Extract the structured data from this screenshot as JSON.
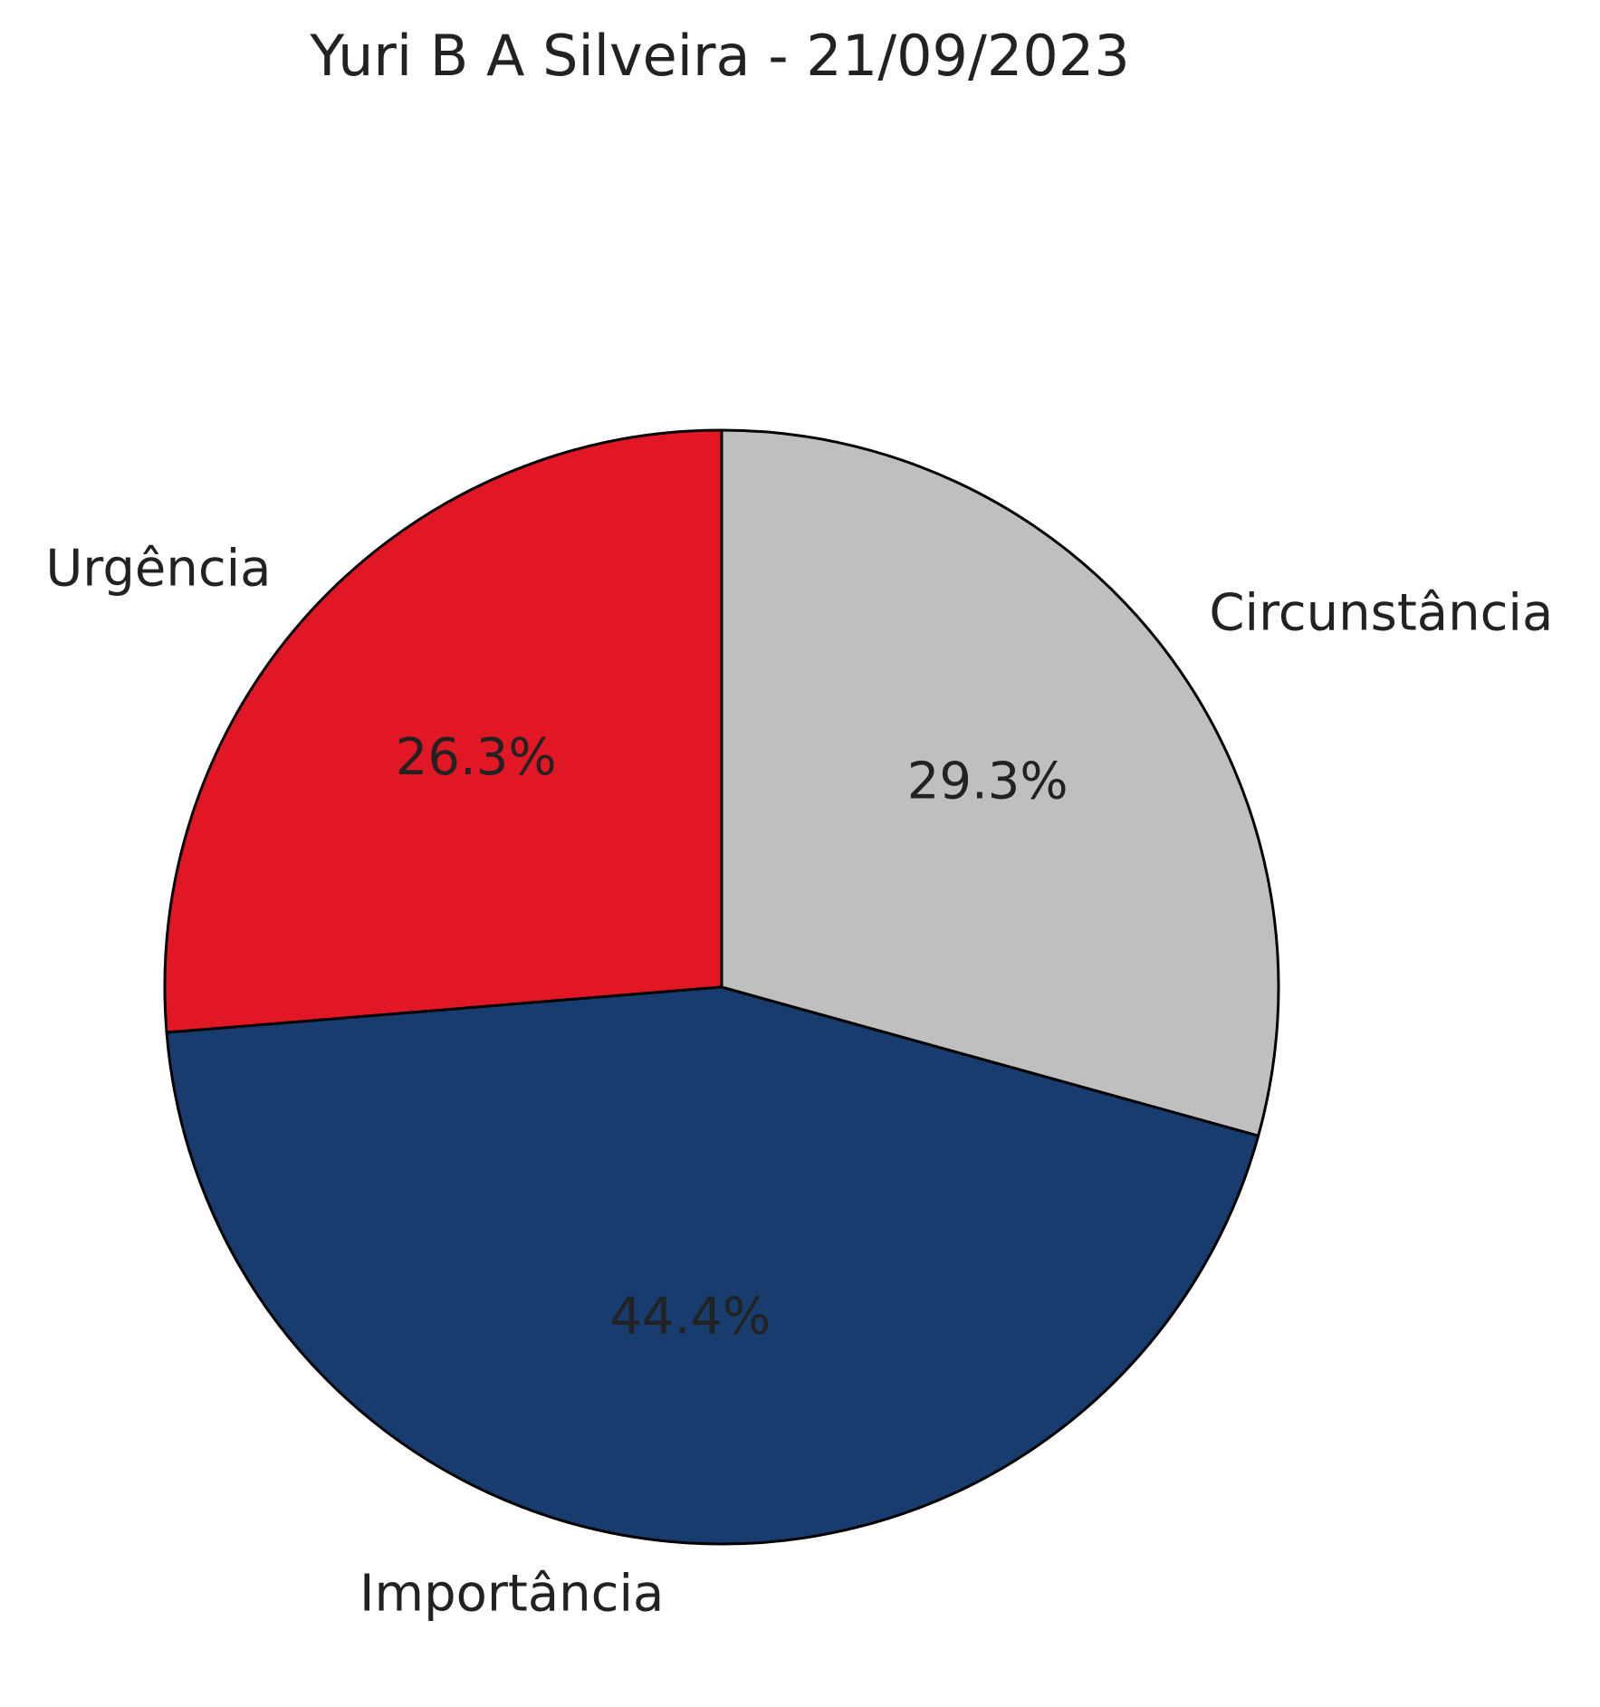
{
  "chart_data": {
    "type": "pie",
    "title": "Yuri B A Silveira - 21/09/2023",
    "start_angle_deg": 90,
    "direction": "counterclockwise",
    "slice_stroke_color": "#000000",
    "slices": [
      {
        "label": "Urgência",
        "value": 26.3,
        "pct_label": "26.3%",
        "color": "#e11726"
      },
      {
        "label": "Importância",
        "value": 44.4,
        "pct_label": "44.4%",
        "color": "#193c6e"
      },
      {
        "label": "Circunstância",
        "value": 29.3,
        "pct_label": "29.3%",
        "color": "#bebfbe"
      }
    ]
  }
}
